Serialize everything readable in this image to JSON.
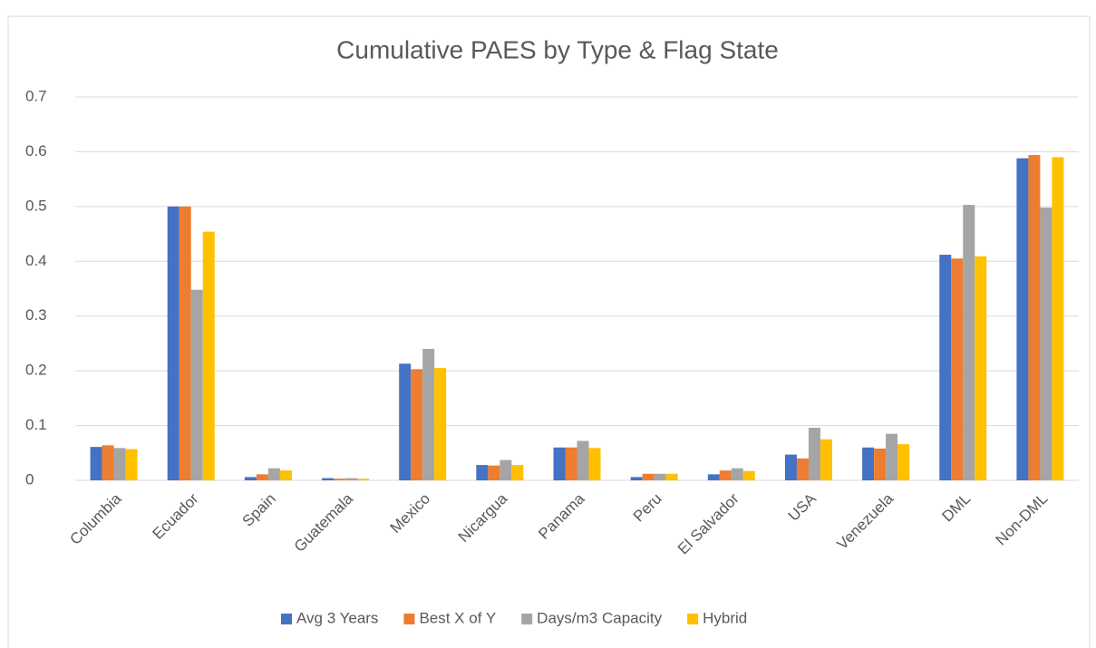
{
  "chart_data": {
    "type": "bar",
    "title": "Cumulative PAES by Type & Flag State",
    "categories": [
      "Columbia",
      "Ecuador",
      "Spain",
      "Guatemala",
      "Mexico",
      "Nicargua",
      "Panama",
      "Peru",
      "El Salvador",
      "USA",
      "Venezuela",
      "DML",
      "Non-DML"
    ],
    "series": [
      {
        "name": "Avg 3 Years",
        "color": "#4472c4",
        "values": [
          0.061,
          0.5,
          0.006,
          0.004,
          0.213,
          0.028,
          0.06,
          0.006,
          0.011,
          0.047,
          0.06,
          0.412,
          0.588
        ]
      },
      {
        "name": "Best X of Y",
        "color": "#ed7d31",
        "values": [
          0.064,
          0.5,
          0.011,
          0.003,
          0.203,
          0.027,
          0.06,
          0.012,
          0.018,
          0.04,
          0.058,
          0.405,
          0.594
        ]
      },
      {
        "name": "Days/m3 Capacity",
        "color": "#a5a5a5",
        "values": [
          0.059,
          0.348,
          0.022,
          0.004,
          0.24,
          0.037,
          0.072,
          0.012,
          0.022,
          0.096,
          0.085,
          0.503,
          0.498
        ]
      },
      {
        "name": "Hybrid",
        "color": "#ffc000",
        "values": [
          0.057,
          0.454,
          0.018,
          0.003,
          0.205,
          0.028,
          0.059,
          0.012,
          0.017,
          0.075,
          0.066,
          0.409,
          0.59
        ]
      }
    ],
    "ylim": [
      0,
      0.7
    ],
    "yticks": [
      0,
      0.1,
      0.2,
      0.3,
      0.4,
      0.5,
      0.6,
      0.7
    ],
    "grid": true,
    "legend": "bottom"
  }
}
